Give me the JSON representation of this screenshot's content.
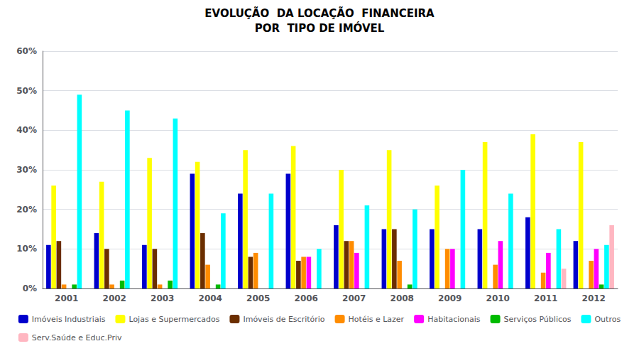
{
  "chart_data": {
    "type": "bar",
    "title": "EVOLUÇÃO  DA LOCAÇÃO  FINANCEIRA",
    "subtitle": "POR  TIPO DE IMÓVEL",
    "categories": [
      "2001",
      "2002",
      "2003",
      "2004",
      "2005",
      "2006",
      "2007",
      "2008",
      "2009",
      "2010",
      "2011",
      "2012"
    ],
    "series": [
      {
        "name": "Imóveis Industriais",
        "color": "#0000CC",
        "values": [
          11,
          14,
          11,
          29,
          24,
          29,
          16,
          15,
          15,
          15,
          18,
          12
        ]
      },
      {
        "name": "Lojas e Supermercados",
        "color": "#FFFF00",
        "values": [
          26,
          27,
          33,
          32,
          35,
          36,
          30,
          35,
          26,
          37,
          39,
          37
        ]
      },
      {
        "name": "Imóveis de Escritório",
        "color": "#6B2E00",
        "values": [
          12,
          10,
          10,
          14,
          8,
          7,
          12,
          15,
          0,
          0,
          0,
          0
        ]
      },
      {
        "name": "Hotéis e Lazer",
        "color": "#FF8C00",
        "values": [
          1,
          1,
          1,
          6,
          9,
          8,
          12,
          7,
          10,
          6,
          4,
          7
        ]
      },
      {
        "name": "Habitacionais",
        "color": "#FF00FF",
        "values": [
          0,
          0,
          0,
          0,
          0,
          8,
          9,
          0,
          10,
          12,
          9,
          10
        ]
      },
      {
        "name": "Serviços Públicos",
        "color": "#00BB00",
        "values": [
          1,
          2,
          2,
          1,
          0,
          0,
          0,
          1,
          0,
          0,
          0,
          1
        ]
      },
      {
        "name": "Outros",
        "color": "#00FFFF",
        "values": [
          49,
          45,
          43,
          19,
          24,
          10,
          21,
          20,
          30,
          24,
          15,
          11
        ]
      },
      {
        "name": "Serv.Saúde e Educ.Priv",
        "color": "#FFB6C1",
        "values": [
          0,
          0,
          0,
          0,
          0,
          0,
          0,
          0,
          0,
          0,
          5,
          16
        ]
      }
    ],
    "ylim": [
      0,
      60
    ],
    "yticks": [
      {
        "value": 0,
        "label": "0%"
      },
      {
        "value": 10,
        "label": "10%"
      },
      {
        "value": 20,
        "label": "20%"
      },
      {
        "value": 30,
        "label": "30%"
      },
      {
        "value": 40,
        "label": "40%"
      },
      {
        "value": 50,
        "label": "50%"
      },
      {
        "value": 60,
        "label": "60%"
      }
    ],
    "grid": true,
    "legend": "bottom"
  }
}
